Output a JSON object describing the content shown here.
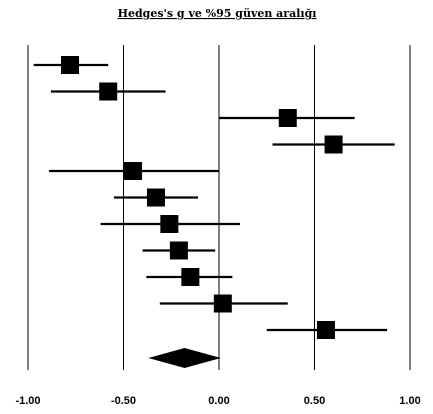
{
  "chart_data": {
    "type": "forest",
    "title": "Hedges's g ve %95 güven aralığı",
    "xlabel": "",
    "ylabel": "",
    "xlim": [
      -1.0,
      1.0
    ],
    "xticks": [
      "-1.00",
      "-0.50",
      "0.00",
      "0.50",
      "1.00"
    ],
    "grid": true,
    "points": [
      {
        "g": -0.78,
        "lower": -0.97,
        "upper": -0.58
      },
      {
        "g": -0.58,
        "lower": -0.88,
        "upper": -0.28
      },
      {
        "g": 0.36,
        "lower": 0.0,
        "upper": 0.71
      },
      {
        "g": 0.6,
        "lower": 0.28,
        "upper": 0.92
      },
      {
        "g": -0.45,
        "lower": -0.89,
        "upper": 0.0
      },
      {
        "g": -0.33,
        "lower": -0.55,
        "upper": -0.11
      },
      {
        "g": -0.26,
        "lower": -0.62,
        "upper": 0.11
      },
      {
        "g": -0.21,
        "lower": -0.4,
        "upper": -0.02
      },
      {
        "g": -0.15,
        "lower": -0.38,
        "upper": 0.07
      },
      {
        "g": 0.02,
        "lower": -0.31,
        "upper": 0.36
      },
      {
        "g": 0.56,
        "lower": 0.25,
        "upper": 0.88
      }
    ],
    "summary": {
      "g": -0.18,
      "lower": -0.37,
      "upper": 0.01
    }
  }
}
